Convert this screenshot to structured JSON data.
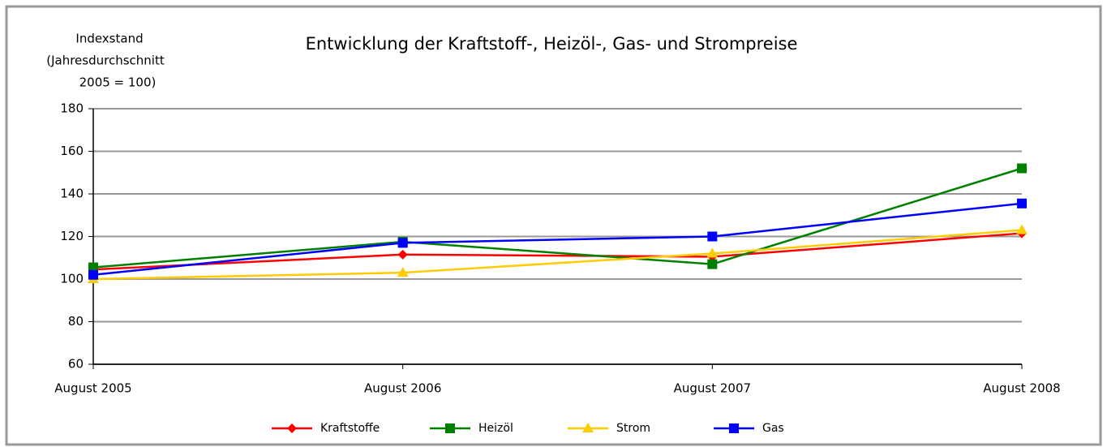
{
  "chart_data": {
    "type": "line",
    "title": "Entwicklung der Kraftstoff-, Heizöl-, Gas- und Strompreise",
    "y_label": [
      "Indexstand",
      "(Jahresdurchschnitt",
      "2005 = 100)"
    ],
    "categories": [
      "August 2005",
      "August 2006",
      "August 2007",
      "August 2008"
    ],
    "series": [
      {
        "name": "Kraftstoffe",
        "color": "#ff0000",
        "marker": "diamond",
        "values": [
          104.5,
          111.5,
          110.5,
          121.5
        ]
      },
      {
        "name": "Heizöl",
        "color": "#008000",
        "marker": "square",
        "values": [
          105.5,
          117.5,
          107,
          152
        ]
      },
      {
        "name": "Strom",
        "color": "#ffcc00",
        "marker": "triangle",
        "values": [
          100,
          103,
          112,
          123
        ]
      },
      {
        "name": "Gas",
        "color": "#0000ff",
        "marker": "square",
        "values": [
          102,
          117,
          120,
          135.5
        ]
      }
    ],
    "ylim": [
      60,
      180
    ],
    "yticks": [
      60,
      80,
      100,
      120,
      140,
      160,
      180
    ],
    "grid": true,
    "legend": "bottom"
  }
}
